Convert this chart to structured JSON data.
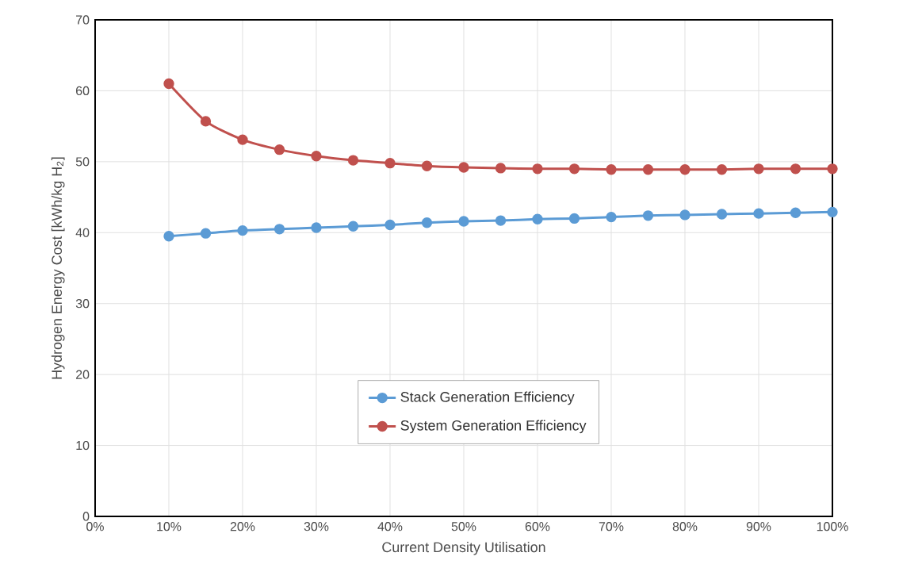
{
  "chart_data": {
    "type": "line",
    "xlabel": "Current Density Utilisation",
    "ylabel": "Hydrogen Energy Cost [kWh/kg H$_{2}$]",
    "x": [
      10,
      15,
      20,
      25,
      30,
      35,
      40,
      45,
      50,
      55,
      60,
      65,
      70,
      75,
      80,
      85,
      90,
      95,
      100
    ],
    "series": [
      {
        "name": "Stack Generation Efficiency",
        "color": "#5b9bd5",
        "values": [
          39.5,
          39.9,
          40.3,
          40.5,
          40.7,
          40.9,
          41.1,
          41.4,
          41.6,
          41.7,
          41.9,
          42.0,
          42.2,
          42.4,
          42.5,
          42.6,
          42.7,
          42.8,
          42.9
        ]
      },
      {
        "name": "System Generation Efficiency",
        "color": "#c0504d",
        "values": [
          61.0,
          55.7,
          53.1,
          51.7,
          50.8,
          50.2,
          49.8,
          49.4,
          49.2,
          49.1,
          49.0,
          49.0,
          48.9,
          48.9,
          48.9,
          48.9,
          49.0,
          49.0,
          49.0
        ]
      }
    ],
    "xlim": [
      0,
      100
    ],
    "xticks": [
      {
        "value": 0,
        "label": "0%"
      },
      {
        "value": 10,
        "label": "10%"
      },
      {
        "value": 20,
        "label": "20%"
      },
      {
        "value": 30,
        "label": "30%"
      },
      {
        "value": 40,
        "label": "40%"
      },
      {
        "value": 50,
        "label": "50%"
      },
      {
        "value": 60,
        "label": "60%"
      },
      {
        "value": 70,
        "label": "70%"
      },
      {
        "value": 80,
        "label": "80%"
      },
      {
        "value": 90,
        "label": "90%"
      },
      {
        "value": 100,
        "label": "100%"
      }
    ],
    "ylim": [
      0,
      70
    ],
    "yticks": [
      0,
      10,
      20,
      30,
      40,
      50,
      60,
      70
    ],
    "grid": true,
    "legend": "bottom",
    "marker": "circle",
    "line_style": "solid"
  }
}
